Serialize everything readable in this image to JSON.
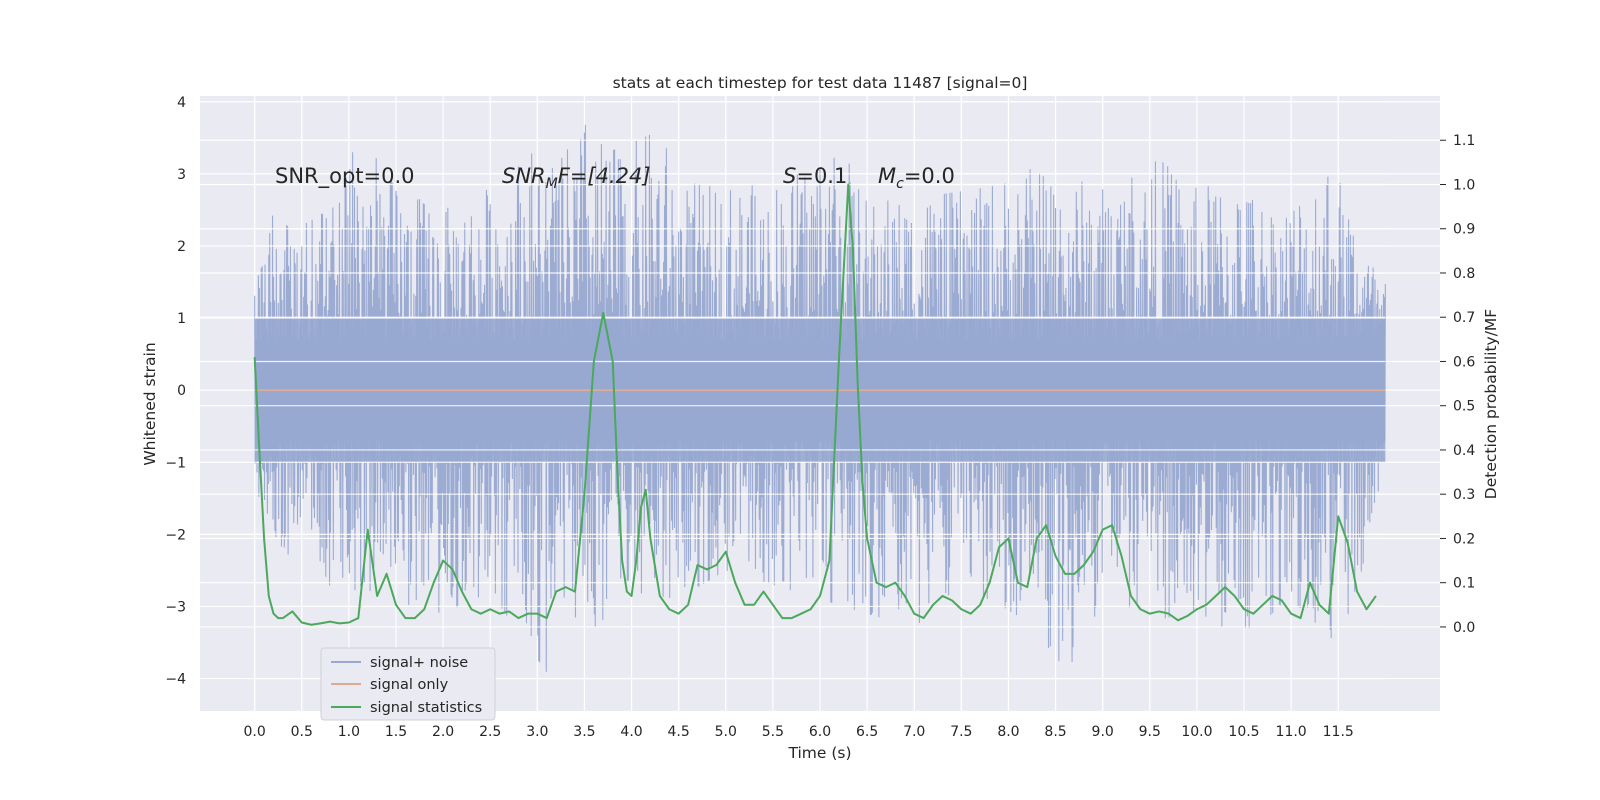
{
  "chart_data": {
    "type": "line",
    "title": "stats at each timestep for test data 11487 [signal=0]",
    "xlabel": "Time (s)",
    "ylabel": "Whitened strain",
    "y2label": "Detection probability/MF",
    "xlim": [
      -0.58,
      12.58
    ],
    "ylim": [
      -4.45,
      4.08
    ],
    "y2lim": [
      -0.19,
      1.2
    ],
    "xticks": [
      0.0,
      0.5,
      1.0,
      1.5,
      2.0,
      2.5,
      3.0,
      3.5,
      4.0,
      4.5,
      5.0,
      5.5,
      6.0,
      6.5,
      7.0,
      7.5,
      8.0,
      8.5,
      9.0,
      9.5,
      10.0,
      10.5,
      11.0,
      11.5
    ],
    "xtick_labels": [
      "0.0",
      "0.5",
      "1.0",
      "1.5",
      "2.0",
      "2.5",
      "3.0",
      "3.5",
      "4.0",
      "4.5",
      "5.0",
      "5.5",
      "6.0",
      "6.5",
      "7.0",
      "7.5",
      "8.0",
      "8.5",
      "9.0",
      "9.5",
      "10.0",
      "10.5",
      "11.0",
      "11.5"
    ],
    "yticks": [
      -4,
      -3,
      -2,
      -1,
      0,
      1,
      2,
      3,
      4
    ],
    "ytick_labels": [
      "−4",
      "−3",
      "−2",
      "−1",
      "0",
      "1",
      "2",
      "3",
      "4"
    ],
    "y2ticks": [
      0.0,
      0.1,
      0.2,
      0.3,
      0.4,
      0.5,
      0.6,
      0.7,
      0.8,
      0.9,
      1.0,
      1.1
    ],
    "y2tick_labels": [
      "0.0",
      "0.1",
      "0.2",
      "0.3",
      "0.4",
      "0.5",
      "0.6",
      "0.7",
      "0.8",
      "0.9",
      "1.0",
      "1.1"
    ],
    "grid": true,
    "legend_position": "lower-left",
    "background": "#eaeaf2",
    "annotations": {
      "snr_opt": "SNR_opt=0.0",
      "snr_mf_main": "SNR",
      "snr_mf_sub": "M",
      "snr_mf_rest": "F=[4.24]",
      "s_sym": "S",
      "s_val": "=0.1",
      "mc_sym": "M",
      "mc_sub": "c",
      "mc_val": "=0.0"
    },
    "series": [
      {
        "name": "signal+ noise",
        "color": "#98a8d0",
        "axis": "left",
        "duration": 12.0,
        "envelope_peaks": [
          [
            0.0,
            1.6
          ],
          [
            0.15,
            2.1
          ],
          [
            0.2,
            2.5
          ],
          [
            0.4,
            2.2
          ],
          [
            0.9,
            2.6
          ],
          [
            1.1,
            3.6
          ],
          [
            1.5,
            2.8
          ],
          [
            2.0,
            2.5
          ],
          [
            2.5,
            2.8
          ],
          [
            2.9,
            3.3
          ],
          [
            3.25,
            3.2
          ],
          [
            3.5,
            3.7
          ],
          [
            3.75,
            3.3
          ],
          [
            4.3,
            3.6
          ],
          [
            4.5,
            2.9
          ],
          [
            5.0,
            2.8
          ],
          [
            5.7,
            2.9
          ],
          [
            6.15,
            3.6
          ],
          [
            6.5,
            2.6
          ],
          [
            7.2,
            2.7
          ],
          [
            7.7,
            2.8
          ],
          [
            8.3,
            3.1
          ],
          [
            9.0,
            2.8
          ],
          [
            9.6,
            3.2
          ],
          [
            10.0,
            2.8
          ],
          [
            10.4,
            2.9
          ],
          [
            10.9,
            2.5
          ],
          [
            11.4,
            3.3
          ],
          [
            11.8,
            2.0
          ],
          [
            11.95,
            1.5
          ]
        ],
        "envelope_troughs": [
          [
            0.0,
            -1.3
          ],
          [
            0.2,
            -2.1
          ],
          [
            0.8,
            -2.8
          ],
          [
            1.4,
            -2.9
          ],
          [
            2.0,
            -3.1
          ],
          [
            2.5,
            -2.8
          ],
          [
            3.2,
            -4.1
          ],
          [
            3.45,
            -3.5
          ],
          [
            4.0,
            -2.8
          ],
          [
            4.5,
            -2.9
          ],
          [
            5.0,
            -2.5
          ],
          [
            6.0,
            -2.9
          ],
          [
            7.0,
            -3.3
          ],
          [
            7.5,
            -2.7
          ],
          [
            8.2,
            -3.2
          ],
          [
            8.65,
            -3.95
          ],
          [
            9.0,
            -2.9
          ],
          [
            10.0,
            -3.3
          ],
          [
            10.6,
            -3.3
          ],
          [
            11.0,
            -2.9
          ],
          [
            11.55,
            -3.6
          ],
          [
            11.95,
            -1.6
          ]
        ]
      },
      {
        "name": "signal only",
        "color": "#e0a890",
        "axis": "left",
        "x": [
          0.0,
          11.98
        ],
        "y": [
          0.0,
          0.0
        ]
      },
      {
        "name": "signal statistics",
        "color": "#4ba85c",
        "axis": "right",
        "x": [
          0.0,
          0.05,
          0.1,
          0.15,
          0.2,
          0.25,
          0.3,
          0.4,
          0.5,
          0.6,
          0.7,
          0.8,
          0.9,
          1.0,
          1.1,
          1.2,
          1.3,
          1.4,
          1.5,
          1.6,
          1.7,
          1.8,
          1.9,
          2.0,
          2.1,
          2.2,
          2.3,
          2.4,
          2.5,
          2.6,
          2.7,
          2.8,
          2.9,
          3.0,
          3.1,
          3.2,
          3.3,
          3.4,
          3.5,
          3.6,
          3.7,
          3.8,
          3.85,
          3.9,
          3.95,
          4.0,
          4.05,
          4.1,
          4.15,
          4.2,
          4.3,
          4.4,
          4.5,
          4.6,
          4.7,
          4.8,
          4.9,
          5.0,
          5.1,
          5.2,
          5.3,
          5.4,
          5.5,
          5.6,
          5.7,
          5.8,
          5.9,
          6.0,
          6.1,
          6.2,
          6.3,
          6.35,
          6.4,
          6.45,
          6.5,
          6.55,
          6.6,
          6.7,
          6.8,
          6.9,
          7.0,
          7.1,
          7.2,
          7.3,
          7.4,
          7.5,
          7.6,
          7.7,
          7.8,
          7.9,
          8.0,
          8.1,
          8.2,
          8.3,
          8.4,
          8.5,
          8.6,
          8.7,
          8.8,
          8.9,
          9.0,
          9.1,
          9.2,
          9.3,
          9.4,
          9.5,
          9.6,
          9.7,
          9.8,
          9.9,
          10.0,
          10.1,
          10.2,
          10.3,
          10.4,
          10.5,
          10.6,
          10.7,
          10.8,
          10.9,
          11.0,
          11.1,
          11.2,
          11.3,
          11.4,
          11.5,
          11.6,
          11.7,
          11.8,
          11.9
        ],
        "y": [
          0.61,
          0.4,
          0.2,
          0.07,
          0.03,
          0.02,
          0.02,
          0.035,
          0.01,
          0.005,
          0.008,
          0.012,
          0.008,
          0.01,
          0.02,
          0.22,
          0.07,
          0.12,
          0.05,
          0.02,
          0.02,
          0.04,
          0.1,
          0.15,
          0.13,
          0.08,
          0.04,
          0.03,
          0.04,
          0.03,
          0.035,
          0.02,
          0.03,
          0.03,
          0.02,
          0.08,
          0.09,
          0.08,
          0.3,
          0.6,
          0.71,
          0.6,
          0.35,
          0.15,
          0.08,
          0.07,
          0.15,
          0.27,
          0.31,
          0.2,
          0.07,
          0.04,
          0.03,
          0.05,
          0.14,
          0.13,
          0.14,
          0.17,
          0.1,
          0.05,
          0.05,
          0.08,
          0.05,
          0.02,
          0.02,
          0.03,
          0.04,
          0.07,
          0.15,
          0.6,
          1.0,
          0.85,
          0.55,
          0.33,
          0.2,
          0.15,
          0.1,
          0.09,
          0.1,
          0.07,
          0.03,
          0.02,
          0.05,
          0.07,
          0.06,
          0.04,
          0.03,
          0.05,
          0.1,
          0.18,
          0.2,
          0.1,
          0.09,
          0.2,
          0.23,
          0.16,
          0.12,
          0.12,
          0.14,
          0.17,
          0.22,
          0.23,
          0.16,
          0.07,
          0.04,
          0.03,
          0.035,
          0.03,
          0.015,
          0.025,
          0.04,
          0.05,
          0.07,
          0.09,
          0.07,
          0.04,
          0.03,
          0.05,
          0.07,
          0.06,
          0.03,
          0.02,
          0.1,
          0.05,
          0.03,
          0.25,
          0.19,
          0.08,
          0.04,
          0.07
        ]
      }
    ]
  }
}
